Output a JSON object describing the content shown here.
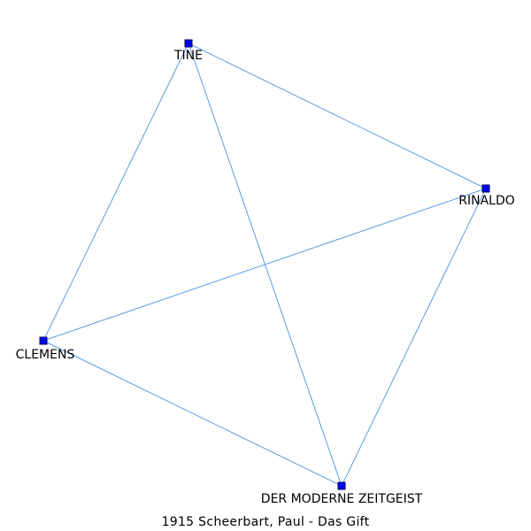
{
  "caption": "1915 Scheerbart, Paul - Das Gift",
  "colors": {
    "edge": "#5b9be0",
    "node_fill": "#0000ee",
    "node_stroke": "#000066",
    "label": "#000000",
    "background": "#ffffff"
  },
  "nodes": [
    {
      "id": "tine",
      "label": "TINE"
    },
    {
      "id": "rinaldo",
      "label": "RINALDO"
    },
    {
      "id": "clemens",
      "label": "CLEMENS"
    },
    {
      "id": "zeitgeist",
      "label": "DER MODERNE ZEITGEIST"
    }
  ],
  "edges": [
    {
      "source": "tine",
      "target": "rinaldo"
    },
    {
      "source": "tine",
      "target": "clemens"
    },
    {
      "source": "tine",
      "target": "zeitgeist"
    },
    {
      "source": "rinaldo",
      "target": "clemens"
    },
    {
      "source": "rinaldo",
      "target": "zeitgeist"
    },
    {
      "source": "clemens",
      "target": "zeitgeist"
    }
  ]
}
